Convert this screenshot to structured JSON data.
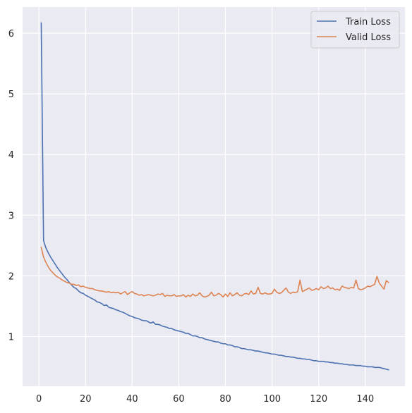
{
  "chart_data": {
    "type": "line",
    "title": "",
    "xlabel": "",
    "ylabel": "",
    "xlim": [
      -7,
      157
    ],
    "ylim": [
      0.18,
      6.43
    ],
    "xticks": [
      0,
      20,
      40,
      60,
      80,
      100,
      120,
      140
    ],
    "yticks": [
      1,
      2,
      3,
      4,
      5,
      6
    ],
    "grid": true,
    "legend_position": "top-right",
    "series": [
      {
        "name": "Train Loss",
        "color": "#4c72b0",
        "x": [
          1,
          2,
          3,
          4,
          5,
          6,
          7,
          8,
          9,
          10,
          11,
          12,
          13,
          14,
          15,
          16,
          17,
          18,
          19,
          20,
          21,
          22,
          23,
          24,
          25,
          26,
          27,
          28,
          29,
          30,
          31,
          32,
          33,
          34,
          35,
          36,
          37,
          38,
          39,
          40,
          41,
          42,
          43,
          44,
          45,
          46,
          47,
          48,
          49,
          50,
          51,
          52,
          53,
          54,
          55,
          56,
          57,
          58,
          59,
          60,
          61,
          62,
          63,
          64,
          65,
          66,
          67,
          68,
          69,
          70,
          71,
          72,
          73,
          74,
          75,
          76,
          77,
          78,
          79,
          80,
          81,
          82,
          83,
          84,
          85,
          86,
          87,
          88,
          89,
          90,
          91,
          92,
          93,
          94,
          95,
          96,
          97,
          98,
          99,
          100,
          101,
          102,
          103,
          104,
          105,
          106,
          107,
          108,
          109,
          110,
          111,
          112,
          113,
          114,
          115,
          116,
          117,
          118,
          119,
          120,
          121,
          122,
          123,
          124,
          125,
          126,
          127,
          128,
          129,
          130,
          131,
          132,
          133,
          134,
          135,
          136,
          137,
          138,
          139,
          140,
          141,
          142,
          143,
          144,
          145,
          146,
          147,
          148,
          149,
          150
        ],
        "y": [
          6.17,
          2.58,
          2.46,
          2.38,
          2.31,
          2.25,
          2.19,
          2.13,
          2.08,
          2.03,
          1.98,
          1.94,
          1.89,
          1.85,
          1.81,
          1.79,
          1.75,
          1.72,
          1.71,
          1.68,
          1.66,
          1.64,
          1.62,
          1.6,
          1.57,
          1.56,
          1.54,
          1.51,
          1.52,
          1.48,
          1.47,
          1.46,
          1.44,
          1.43,
          1.41,
          1.4,
          1.38,
          1.36,
          1.34,
          1.33,
          1.31,
          1.3,
          1.29,
          1.27,
          1.26,
          1.26,
          1.24,
          1.22,
          1.24,
          1.2,
          1.2,
          1.19,
          1.17,
          1.16,
          1.15,
          1.13,
          1.13,
          1.11,
          1.1,
          1.09,
          1.08,
          1.07,
          1.05,
          1.05,
          1.03,
          1.01,
          1.01,
          1.0,
          0.98,
          0.98,
          0.96,
          0.95,
          0.94,
          0.93,
          0.92,
          0.91,
          0.91,
          0.89,
          0.88,
          0.88,
          0.86,
          0.86,
          0.85,
          0.83,
          0.83,
          0.82,
          0.8,
          0.8,
          0.79,
          0.78,
          0.78,
          0.77,
          0.76,
          0.76,
          0.75,
          0.74,
          0.73,
          0.73,
          0.72,
          0.71,
          0.71,
          0.7,
          0.69,
          0.69,
          0.68,
          0.67,
          0.67,
          0.66,
          0.66,
          0.65,
          0.64,
          0.64,
          0.63,
          0.63,
          0.62,
          0.62,
          0.61,
          0.6,
          0.6,
          0.59,
          0.59,
          0.59,
          0.58,
          0.58,
          0.57,
          0.57,
          0.56,
          0.56,
          0.55,
          0.55,
          0.54,
          0.54,
          0.53,
          0.53,
          0.53,
          0.52,
          0.52,
          0.52,
          0.51,
          0.51,
          0.5,
          0.5,
          0.5,
          0.49,
          0.49,
          0.49,
          0.48,
          0.47,
          0.46,
          0.45
        ]
      },
      {
        "name": "Valid Loss",
        "color": "#dd8452",
        "x": [
          1,
          2,
          3,
          4,
          5,
          6,
          7,
          8,
          9,
          10,
          11,
          12,
          13,
          14,
          15,
          16,
          17,
          18,
          19,
          20,
          21,
          22,
          23,
          24,
          25,
          26,
          27,
          28,
          29,
          30,
          31,
          32,
          33,
          34,
          35,
          36,
          37,
          38,
          39,
          40,
          41,
          42,
          43,
          44,
          45,
          46,
          47,
          48,
          49,
          50,
          51,
          52,
          53,
          54,
          55,
          56,
          57,
          58,
          59,
          60,
          61,
          62,
          63,
          64,
          65,
          66,
          67,
          68,
          69,
          70,
          71,
          72,
          73,
          74,
          75,
          76,
          77,
          78,
          79,
          80,
          81,
          82,
          83,
          84,
          85,
          86,
          87,
          88,
          89,
          90,
          91,
          92,
          93,
          94,
          95,
          96,
          97,
          98,
          99,
          100,
          101,
          102,
          103,
          104,
          105,
          106,
          107,
          108,
          109,
          110,
          111,
          112,
          113,
          114,
          115,
          116,
          117,
          118,
          119,
          120,
          121,
          122,
          123,
          124,
          125,
          126,
          127,
          128,
          129,
          130,
          131,
          132,
          133,
          134,
          135,
          136,
          137,
          138,
          139,
          140,
          141,
          142,
          143,
          144,
          145,
          146,
          147,
          148,
          149,
          150
        ],
        "y": [
          2.47,
          2.31,
          2.22,
          2.15,
          2.09,
          2.05,
          2.01,
          1.98,
          1.96,
          1.93,
          1.91,
          1.89,
          1.88,
          1.86,
          1.86,
          1.84,
          1.85,
          1.82,
          1.83,
          1.81,
          1.8,
          1.79,
          1.79,
          1.77,
          1.76,
          1.75,
          1.75,
          1.74,
          1.73,
          1.74,
          1.72,
          1.73,
          1.72,
          1.73,
          1.7,
          1.72,
          1.74,
          1.69,
          1.72,
          1.74,
          1.71,
          1.7,
          1.68,
          1.69,
          1.67,
          1.68,
          1.69,
          1.68,
          1.67,
          1.68,
          1.7,
          1.69,
          1.71,
          1.66,
          1.68,
          1.67,
          1.67,
          1.69,
          1.66,
          1.67,
          1.67,
          1.69,
          1.65,
          1.68,
          1.66,
          1.7,
          1.67,
          1.68,
          1.72,
          1.67,
          1.65,
          1.66,
          1.68,
          1.73,
          1.67,
          1.68,
          1.71,
          1.69,
          1.65,
          1.7,
          1.66,
          1.72,
          1.67,
          1.69,
          1.72,
          1.68,
          1.67,
          1.7,
          1.71,
          1.69,
          1.75,
          1.7,
          1.71,
          1.81,
          1.71,
          1.7,
          1.72,
          1.7,
          1.7,
          1.71,
          1.78,
          1.73,
          1.71,
          1.72,
          1.76,
          1.8,
          1.73,
          1.71,
          1.73,
          1.72,
          1.74,
          1.93,
          1.74,
          1.76,
          1.78,
          1.8,
          1.76,
          1.77,
          1.79,
          1.77,
          1.82,
          1.79,
          1.8,
          1.83,
          1.79,
          1.8,
          1.77,
          1.78,
          1.76,
          1.83,
          1.81,
          1.8,
          1.79,
          1.81,
          1.8,
          1.93,
          1.79,
          1.77,
          1.78,
          1.8,
          1.83,
          1.82,
          1.84,
          1.86,
          1.99,
          1.88,
          1.83,
          1.78,
          1.92,
          1.89
        ]
      }
    ]
  }
}
